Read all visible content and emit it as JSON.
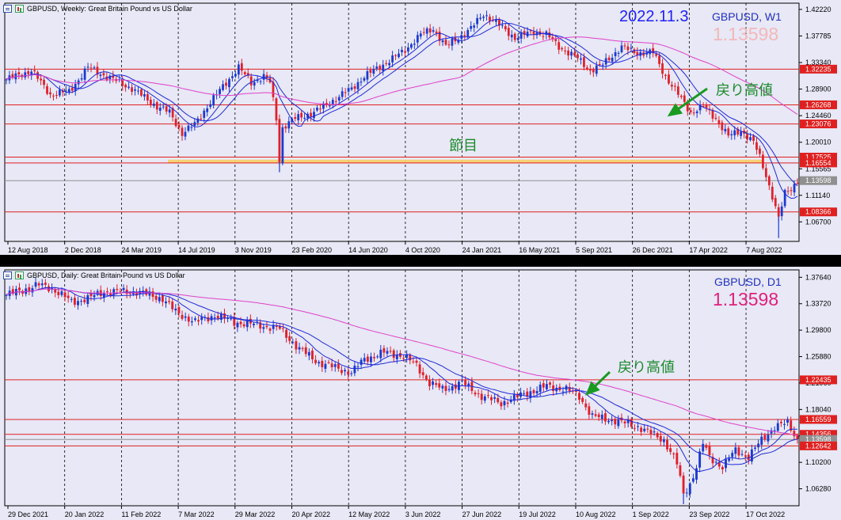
{
  "colors": {
    "bg": "#e8e8f6",
    "grid": "#000000",
    "bull": "#1c3ad0",
    "bear": "#e0202a",
    "ma_fast": "#1e2ad8",
    "ma_mid": "#1e2ad8",
    "ma_slow": "#e040c8",
    "level": "#e02020",
    "zone": "#f5d070",
    "arrow": "#1a9a20",
    "current": "#909090"
  },
  "weekly": {
    "header_text": "GBPUSD, Weekly:  Great Britain Pound vs US Dollar",
    "date_label": "2022.11.3",
    "symbol_label": "GBPUSD, W1",
    "price_label": "1.13598",
    "price_color": "#f2b8b8",
    "annotation_high": "戻り高値",
    "annotation_zone": "節目",
    "icons": [
      "list-icon",
      "chart-icon"
    ]
  },
  "daily": {
    "header_text": "GBPUSD, Daily:  Great Britain Pound vs US Dollar",
    "symbol_label": "GBPUSD, D1",
    "price_label": "1.13598",
    "price_color": "#e0207a",
    "annotation_high": "戻り高値",
    "icons": [
      "list-icon",
      "chart-icon"
    ]
  },
  "chart_data": [
    {
      "type": "candlestick",
      "timeframe": "Weekly",
      "symbol": "GBPUSD",
      "ylim": [
        1.037,
        1.43
      ],
      "y_ticks": [
        "1.42220",
        "1.37785",
        "1.33340",
        "1.28900",
        "1.24460",
        "1.20010",
        "1.15565",
        "1.11140",
        "1.06700"
      ],
      "x_ticks": [
        "12 Aug 2018",
        "2 Dec 2018",
        "24 Mar 2019",
        "14 Jul 2019",
        "3 Nov 2019",
        "23 Feb 2020",
        "14 Jun 2020",
        "4 Oct 2020",
        "24 Jan 2021",
        "16 May 2021",
        "5 Sep 2021",
        "26 Dec 2021",
        "17 Apr 2022",
        "7 Aug 2022"
      ],
      "price_tags": [
        {
          "label": "1.32235",
          "value": 1.32235,
          "kind": "level"
        },
        {
          "label": "1.26268",
          "value": 1.26268,
          "kind": "level"
        },
        {
          "label": "1.23076",
          "value": 1.23076,
          "kind": "level"
        },
        {
          "label": "1.17525",
          "value": 1.17525,
          "kind": "level"
        },
        {
          "label": "1.16554",
          "value": 1.16554,
          "kind": "level"
        },
        {
          "label": "1.13598",
          "value": 1.13598,
          "kind": "current"
        },
        {
          "label": "1.08366",
          "value": 1.08366,
          "kind": "level"
        }
      ],
      "zone": [
        1.165,
        1.171
      ],
      "key_points": [
        [
          0,
          1.305
        ],
        [
          8,
          1.32
        ],
        [
          14,
          1.28
        ],
        [
          20,
          1.285
        ],
        [
          26,
          1.325
        ],
        [
          32,
          1.31
        ],
        [
          40,
          1.29
        ],
        [
          48,
          1.26
        ],
        [
          52,
          1.25
        ],
        [
          56,
          1.215
        ],
        [
          60,
          1.23
        ],
        [
          64,
          1.26
        ],
        [
          70,
          1.3
        ],
        [
          74,
          1.325
        ],
        [
          78,
          1.3
        ],
        [
          82,
          1.31
        ],
        [
          84,
          1.3
        ],
        [
          86,
          1.24
        ],
        [
          87,
          1.17
        ],
        [
          88,
          1.225
        ],
        [
          92,
          1.24
        ],
        [
          98,
          1.25
        ],
        [
          104,
          1.27
        ],
        [
          110,
          1.29
        ],
        [
          114,
          1.31
        ],
        [
          120,
          1.33
        ],
        [
          126,
          1.35
        ],
        [
          132,
          1.38
        ],
        [
          136,
          1.39
        ],
        [
          140,
          1.36
        ],
        [
          148,
          1.39
        ],
        [
          152,
          1.415
        ],
        [
          156,
          1.4
        ],
        [
          162,
          1.375
        ],
        [
          168,
          1.385
        ],
        [
          172,
          1.38
        ],
        [
          176,
          1.36
        ],
        [
          182,
          1.34
        ],
        [
          186,
          1.32
        ],
        [
          190,
          1.33
        ],
        [
          196,
          1.36
        ],
        [
          200,
          1.35
        ],
        [
          206,
          1.35
        ],
        [
          210,
          1.31
        ],
        [
          214,
          1.28
        ],
        [
          218,
          1.25
        ],
        [
          222,
          1.26
        ],
        [
          226,
          1.24
        ],
        [
          230,
          1.21
        ],
        [
          234,
          1.22
        ],
        [
          238,
          1.2
        ],
        [
          240,
          1.175
        ],
        [
          242,
          1.145
        ],
        [
          244,
          1.11
        ],
        [
          246,
          1.072
        ],
        [
          248,
          1.115
        ],
        [
          250,
          1.123
        ],
        [
          252,
          1.136
        ]
      ],
      "total_bars": 253
    },
    {
      "type": "candlestick",
      "timeframe": "Daily",
      "symbol": "GBPUSD",
      "ylim": [
        1.04,
        1.385
      ],
      "y_ticks": [
        "1.37640",
        "1.33720",
        "1.29800",
        "1.25880",
        "1.21960",
        "1.18040",
        "1.14120",
        "1.10200",
        "1.06280"
      ],
      "x_ticks": [
        "29 Dec 2021",
        "20 Jan 2022",
        "11 Feb 2022",
        "7 Mar 2022",
        "29 Mar 2022",
        "20 Apr 2022",
        "12 May 2022",
        "3 Jun 2022",
        "27 Jun 2022",
        "19 Jul 2022",
        "10 Aug 2022",
        "1 Sep 2022",
        "23 Sep 2022",
        "17 Oct 2022"
      ],
      "price_tags": [
        {
          "label": "1.22435",
          "value": 1.22435,
          "kind": "level"
        },
        {
          "label": "1.16559",
          "value": 1.16559,
          "kind": "level"
        },
        {
          "label": "1.14356",
          "value": 1.14356,
          "kind": "level"
        },
        {
          "label": "1.13598",
          "value": 1.13598,
          "kind": "current"
        },
        {
          "label": "1.12642",
          "value": 1.12642,
          "kind": "level"
        }
      ],
      "key_points": [
        [
          0,
          1.35
        ],
        [
          10,
          1.365
        ],
        [
          14,
          1.36
        ],
        [
          20,
          1.34
        ],
        [
          25,
          1.345
        ],
        [
          30,
          1.355
        ],
        [
          40,
          1.355
        ],
        [
          48,
          1.345
        ],
        [
          52,
          1.325
        ],
        [
          58,
          1.31
        ],
        [
          64,
          1.32
        ],
        [
          70,
          1.31
        ],
        [
          78,
          1.305
        ],
        [
          84,
          1.3
        ],
        [
          90,
          1.27
        ],
        [
          96,
          1.25
        ],
        [
          106,
          1.235
        ],
        [
          110,
          1.255
        ],
        [
          116,
          1.265
        ],
        [
          122,
          1.26
        ],
        [
          126,
          1.245
        ],
        [
          130,
          1.22
        ],
        [
          134,
          1.21
        ],
        [
          140,
          1.22
        ],
        [
          146,
          1.2
        ],
        [
          152,
          1.19
        ],
        [
          160,
          1.205
        ],
        [
          166,
          1.215
        ],
        [
          172,
          1.21
        ],
        [
          176,
          1.2
        ],
        [
          180,
          1.17
        ],
        [
          186,
          1.165
        ],
        [
          190,
          1.16
        ],
        [
          194,
          1.155
        ],
        [
          198,
          1.145
        ],
        [
          202,
          1.135
        ],
        [
          206,
          1.1
        ],
        [
          208,
          1.055
        ],
        [
          210,
          1.07
        ],
        [
          212,
          1.095
        ],
        [
          214,
          1.13
        ],
        [
          216,
          1.11
        ],
        [
          220,
          1.095
        ],
        [
          224,
          1.12
        ],
        [
          228,
          1.11
        ],
        [
          232,
          1.135
        ],
        [
          236,
          1.155
        ],
        [
          240,
          1.16
        ],
        [
          243,
          1.136
        ]
      ],
      "total_bars": 244
    }
  ]
}
